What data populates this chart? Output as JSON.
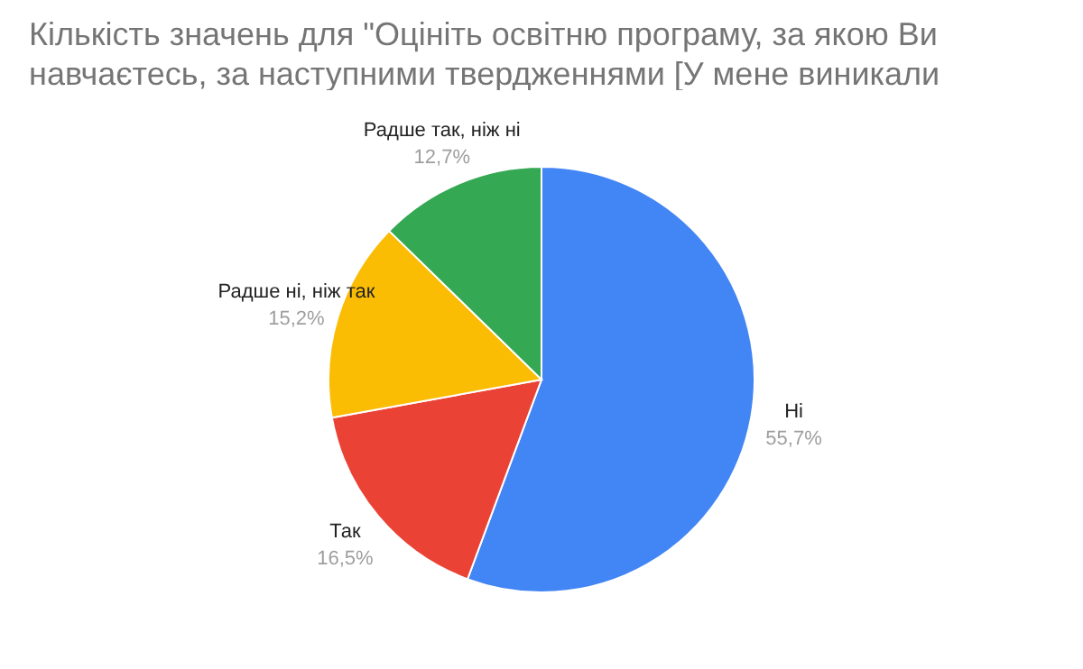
{
  "chart_data": {
    "type": "pie",
    "title": "Кількість значень для \"Оцініть освітню програму, за якою Ви навчаєтесь, за наступними твердженнями [У мене виникали",
    "categories": [
      "Ні",
      "Так",
      "Радше ні, ніж так",
      "Радше так, ніж ні"
    ],
    "values": [
      55.7,
      16.5,
      15.2,
      12.7
    ],
    "value_labels": [
      "55,7%",
      "16,5%",
      "15,2%",
      "12,7%"
    ],
    "colors": [
      "#4285f4",
      "#ea4335",
      "#fbbc04",
      "#34a853"
    ]
  }
}
